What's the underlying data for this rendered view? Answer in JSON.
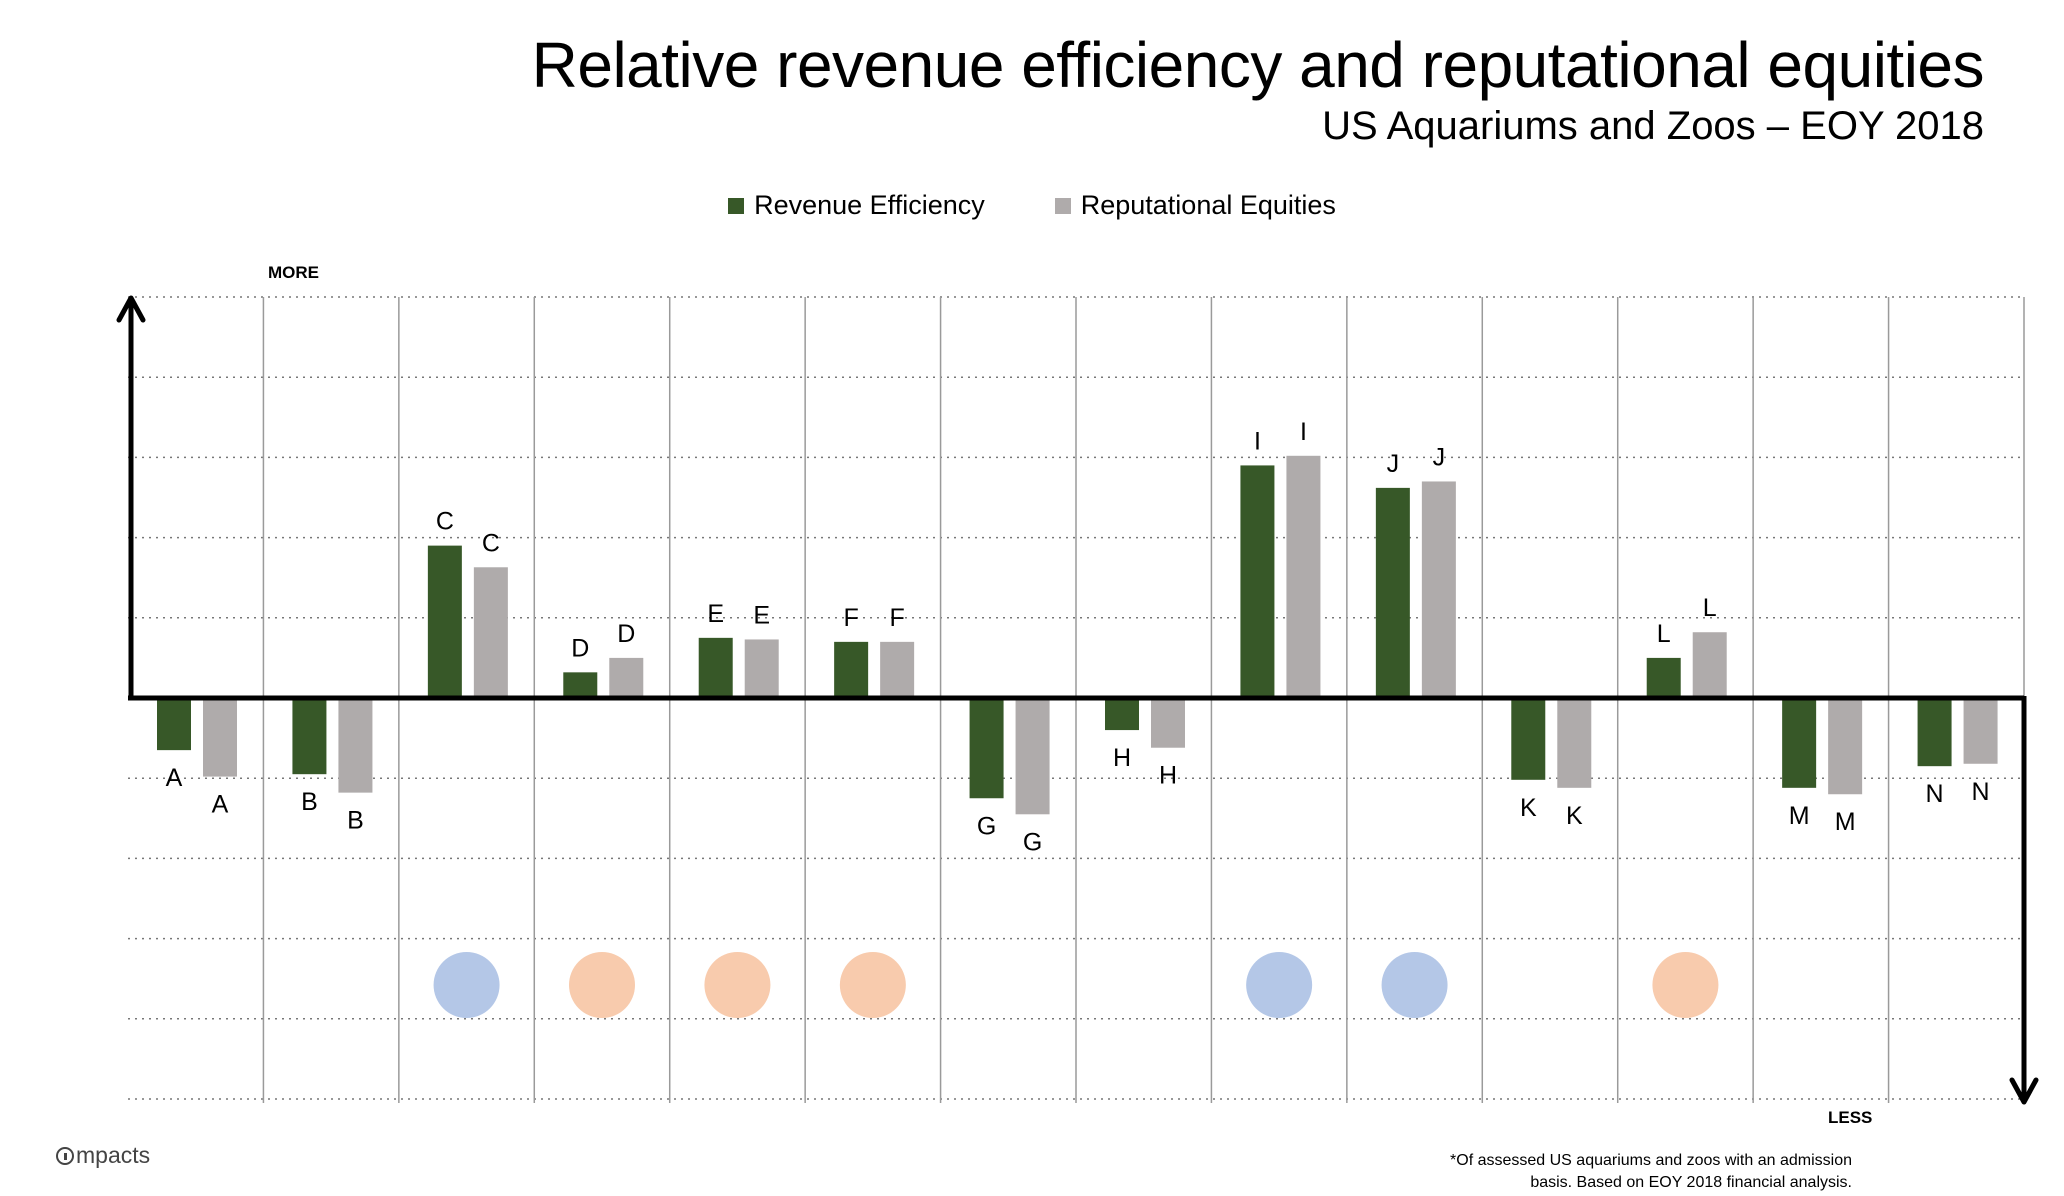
{
  "title": "Relative revenue efficiency and reputational equities",
  "subtitle": "US Aquariums and Zoos – EOY 2018",
  "axis_top_label": "MORE",
  "axis_bottom_label": "LESS",
  "logo_text": "mpacts",
  "footnote_line1": "*Of assessed US aquariums and zoos with an admission",
  "footnote_line2": "basis. Based on EOY 2018 financial analysis.",
  "colors": {
    "revenue": "#375828",
    "reputation": "#afabab",
    "blue_marker": "#b4c7e7",
    "orange_marker": "#f8cbad"
  },
  "chart_data": {
    "type": "bar",
    "title": "Relative revenue efficiency and reputational equities",
    "subtitle": "US Aquariums and Zoos – EOY 2018",
    "categories": [
      "A",
      "B",
      "C",
      "D",
      "E",
      "F",
      "G",
      "H",
      "I",
      "J",
      "K",
      "L",
      "M",
      "N"
    ],
    "series": [
      {
        "name": "Revenue Efficiency",
        "values": [
          -0.65,
          -0.95,
          1.9,
          0.32,
          0.75,
          0.7,
          -1.25,
          -0.4,
          2.9,
          2.62,
          -1.02,
          0.5,
          -1.12,
          -0.85
        ]
      },
      {
        "name": "Reputational Equities",
        "values": [
          -0.98,
          -1.18,
          1.63,
          0.5,
          0.73,
          0.7,
          -1.45,
          -0.62,
          3.02,
          2.7,
          -1.12,
          0.82,
          -1.2,
          -0.82
        ]
      }
    ],
    "markers": [
      "",
      "",
      "blue",
      "orange",
      "orange",
      "orange",
      "",
      "",
      "blue",
      "blue",
      "",
      "orange",
      "",
      ""
    ],
    "ylim": [
      -5,
      5
    ],
    "y_tick_labels_shown": false,
    "grid": true,
    "legend": "top-center"
  }
}
